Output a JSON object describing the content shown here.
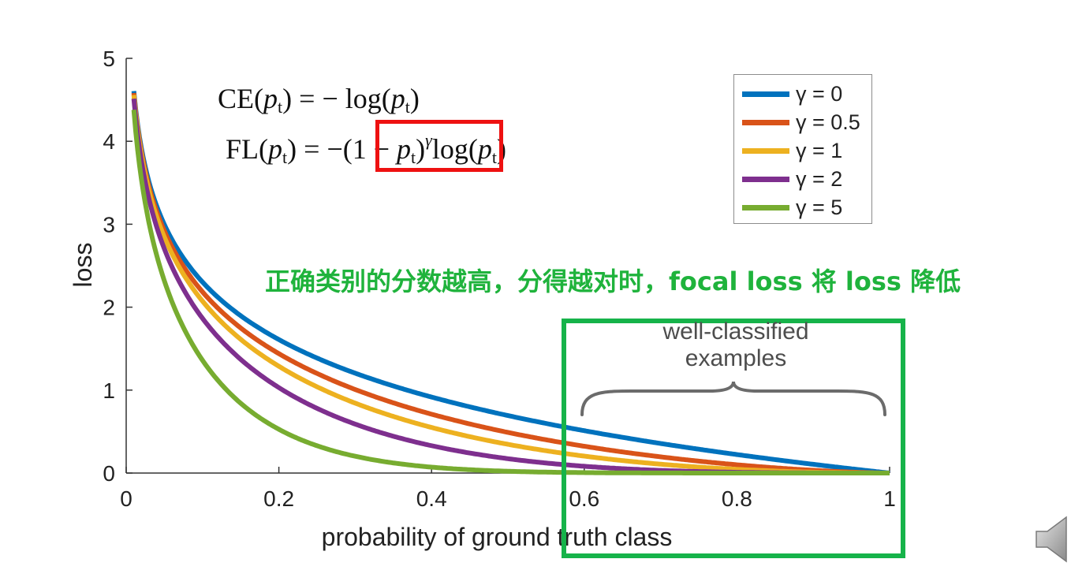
{
  "chart_data": {
    "type": "line",
    "xlabel": "probability of ground truth class",
    "ylabel": "loss",
    "xlim": [
      0,
      1
    ],
    "ylim": [
      0,
      5
    ],
    "xticks": [
      "0",
      "0.2",
      "0.4",
      "0.6",
      "0.8",
      "1"
    ],
    "yticks": [
      "0",
      "1",
      "2",
      "3",
      "4",
      "5"
    ],
    "grid": false,
    "legend_position": "top-right",
    "function": "loss = -(1 - p)^gamma * log(p)",
    "series": [
      {
        "name": "γ = 0",
        "gamma": 0,
        "color": "#0072bd",
        "x": [
          0.01,
          0.05,
          0.1,
          0.2,
          0.3,
          0.4,
          0.5,
          0.6,
          0.7,
          0.8,
          0.9,
          1.0
        ],
        "y": [
          4.61,
          3.0,
          2.3,
          1.61,
          1.2,
          0.92,
          0.69,
          0.51,
          0.36,
          0.22,
          0.11,
          0.0
        ]
      },
      {
        "name": "γ = 0.5",
        "gamma": 0.5,
        "color": "#d95319",
        "x": [
          0.01,
          0.05,
          0.1,
          0.2,
          0.3,
          0.4,
          0.5,
          0.6,
          0.7,
          0.8,
          0.9,
          1.0
        ],
        "y": [
          4.58,
          2.92,
          2.18,
          1.44,
          1.01,
          0.71,
          0.49,
          0.32,
          0.2,
          0.1,
          0.03,
          0.0
        ]
      },
      {
        "name": "γ = 1",
        "gamma": 1,
        "color": "#edb120",
        "x": [
          0.01,
          0.05,
          0.1,
          0.2,
          0.3,
          0.4,
          0.5,
          0.6,
          0.7,
          0.8,
          0.9,
          1.0
        ],
        "y": [
          4.56,
          2.85,
          2.07,
          1.29,
          0.84,
          0.55,
          0.35,
          0.2,
          0.11,
          0.04,
          0.01,
          0.0
        ]
      },
      {
        "name": "γ = 2",
        "gamma": 2,
        "color": "#7e2f8e",
        "x": [
          0.01,
          0.05,
          0.1,
          0.2,
          0.3,
          0.4,
          0.5,
          0.6,
          0.7,
          0.8,
          0.9,
          1.0
        ],
        "y": [
          4.51,
          2.71,
          1.87,
          1.03,
          0.59,
          0.33,
          0.17,
          0.08,
          0.03,
          0.01,
          0.0,
          0.0
        ]
      },
      {
        "name": "γ = 5",
        "gamma": 5,
        "color": "#77ac30",
        "x": [
          0.01,
          0.05,
          0.1,
          0.2,
          0.3,
          0.4,
          0.5,
          0.6,
          0.7,
          0.8,
          0.9,
          1.0
        ],
        "y": [
          4.38,
          2.32,
          1.36,
          0.53,
          0.2,
          0.07,
          0.02,
          0.0,
          0.0,
          0.0,
          0.0,
          0.0
        ]
      }
    ],
    "annotations": {
      "well_classified": "well-classified examples",
      "note": "正确类别的分数越高，分得越对时，focal loss 将 loss 降低"
    }
  },
  "formulas": {
    "ce": {
      "lhs": "CE",
      "eq": " = − log(",
      "p": "p",
      "sub": "t",
      "close": ")"
    },
    "fl": {
      "lhs": "FL",
      "eq": " = −",
      "open": "(1 − ",
      "p": "p",
      "sub": "t",
      "close": ")",
      "gamma": "γ",
      "log": "log(",
      "end": ")"
    }
  },
  "colors": {
    "highlight_red": "#ee1111",
    "annotation_green": "#1fb33c",
    "box_green": "#16b34a"
  },
  "icons": {
    "speaker": "speaker-icon"
  }
}
